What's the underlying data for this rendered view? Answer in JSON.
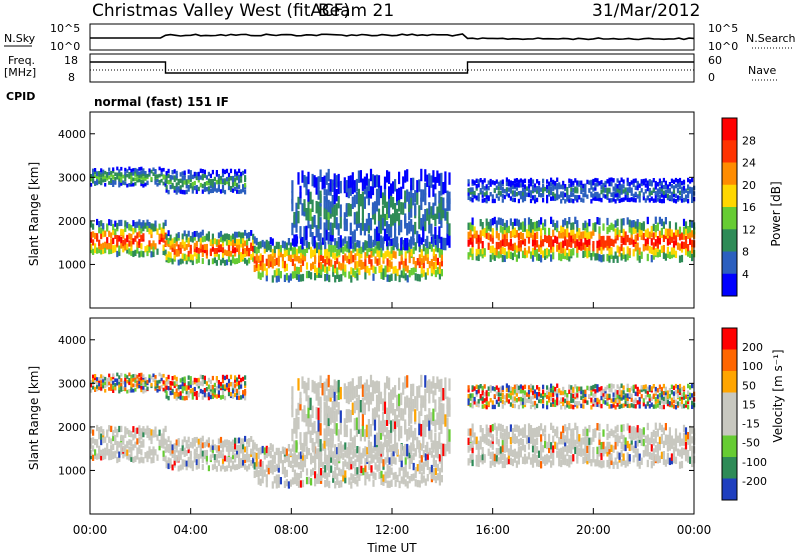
{
  "header": {
    "station": "Christmas Valley West (fitACF)",
    "beam": "Beam 21",
    "date": "31/Mar/2012"
  },
  "panel_labels": {
    "nsky": "N.Sky",
    "nsearch": "N.Search",
    "freq": "Freq.",
    "freq_unit": "[MHz]",
    "nave": "Nave",
    "cpid": "CPID",
    "cpid_value": "normal (fast) 151 IF"
  },
  "noise_axis": {
    "left_ticks": [
      "10^5",
      "10^0"
    ],
    "right_ticks": [
      "10^5",
      "10^0"
    ]
  },
  "freq_axis": {
    "left_ticks": [
      "18",
      "8"
    ],
    "right_ticks": [
      "60",
      "0"
    ]
  },
  "chart_data": [
    {
      "type": "heatmap",
      "name": "power",
      "ylabel": "Slant Range [km]",
      "yticks": [
        1000,
        2000,
        3000,
        4000
      ],
      "ylim": [
        0,
        4500
      ],
      "xlim": [
        0,
        24
      ],
      "colorbar": {
        "label": "Power [dB]",
        "ticks": [
          "28",
          "24",
          "20",
          "16",
          "12",
          "8",
          "4"
        ],
        "colors": [
          "#0000ff",
          "#2b5fbf",
          "#2e8b57",
          "#66cc33",
          "#ffd700",
          "#ff8c00",
          "#ff3300",
          "#ff0000"
        ]
      },
      "bands": [
        {
          "t_start": 0.0,
          "t_end": 3.0,
          "range_km": [
            1300,
            2050
          ],
          "peak_db": 30
        },
        {
          "t_start": 0.0,
          "t_end": 3.0,
          "range_km": [
            2850,
            3250
          ],
          "peak_db": 14
        },
        {
          "t_start": 3.0,
          "t_end": 6.5,
          "range_km": [
            1100,
            1800
          ],
          "peak_db": 28
        },
        {
          "t_start": 3.0,
          "t_end": 6.2,
          "range_km": [
            2700,
            3200
          ],
          "peak_db": 12
        },
        {
          "t_start": 6.5,
          "t_end": 14.0,
          "range_km": [
            750,
            1650
          ],
          "peak_db": 26
        },
        {
          "t_start": 8.0,
          "t_end": 14.3,
          "range_km": [
            1600,
            3200
          ],
          "peak_db": 10
        },
        {
          "t_start": 15.0,
          "t_end": 24.0,
          "range_km": [
            1200,
            2100
          ],
          "peak_db": 30
        },
        {
          "t_start": 15.0,
          "t_end": 24.0,
          "range_km": [
            2500,
            3000
          ],
          "peak_db": 8
        }
      ]
    },
    {
      "type": "heatmap",
      "name": "velocity",
      "ylabel": "Slant Range [km]",
      "yticks": [
        1000,
        2000,
        3000,
        4000
      ],
      "ylim": [
        0,
        4500
      ],
      "xlim": [
        0,
        24
      ],
      "colorbar": {
        "label": "Velocity [m s⁻¹]",
        "ticks": [
          "200",
          "100",
          "50",
          "15",
          "-15",
          "-50",
          "-100",
          "-200"
        ],
        "colors": [
          "#1f3fbf",
          "#2e8b57",
          "#66cc33",
          "#c8c8c0",
          "#c8c8c0",
          "#ffa500",
          "#ff6600",
          "#ff0000"
        ]
      },
      "ground_scatter_color": "#c8c8c0"
    }
  ],
  "time_axis": {
    "ticks": [
      "00:00",
      "04:00",
      "08:00",
      "12:00",
      "16:00",
      "20:00",
      "00:00"
    ],
    "label": "Time UT"
  }
}
